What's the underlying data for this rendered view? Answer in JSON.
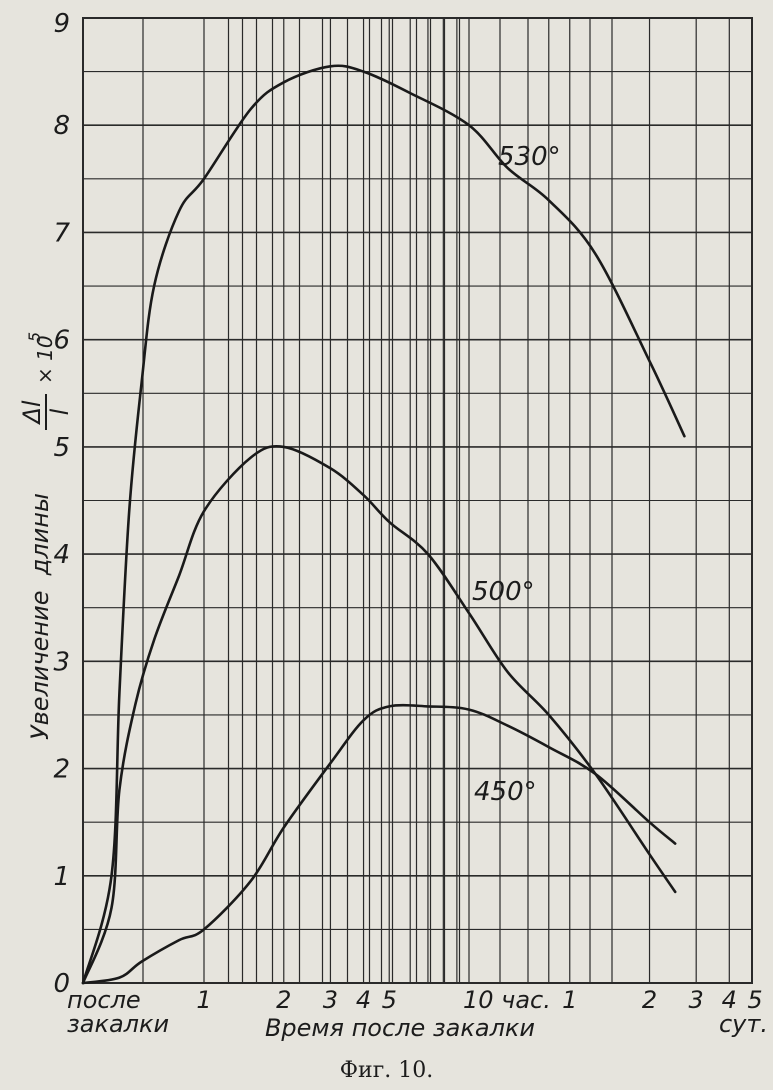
{
  "chart_data": {
    "type": "line",
    "caption": "Фиг. 10.",
    "ylabel": {
      "prefix": "Увеличение  длины",
      "frac_num": "Δl",
      "frac_den": "l",
      "factor": "× 10",
      "exp": "5"
    },
    "xlabel": "Время после закалки",
    "ylim": [
      0,
      9
    ],
    "y_ticks": [
      "0",
      "1",
      "2",
      "3",
      "4",
      "5",
      "6",
      "7",
      "8",
      "9"
    ],
    "x_scale": "log",
    "x_units": "hours",
    "x_ticks": [
      {
        "label_lines": [
          "после",
          "закалки"
        ],
        "anchor": "start"
      },
      {
        "label_lines": [
          "1"
        ]
      },
      {
        "label_lines": [
          "2"
        ]
      },
      {
        "label_lines": [
          "3"
        ]
      },
      {
        "label_lines": [
          "4"
        ]
      },
      {
        "label_lines": [
          "5"
        ]
      },
      {
        "label_lines": [
          "10 час."
        ]
      },
      {
        "label_lines": [
          "1"
        ]
      },
      {
        "label_lines": [
          "2"
        ]
      },
      {
        "label_lines": [
          "3"
        ]
      },
      {
        "label_lines": [
          "4"
        ]
      },
      {
        "label_lines": [
          "5"
        ]
      },
      {
        "label_lines": [
          "",
          "сут."
        ],
        "anchor": "end"
      }
    ],
    "grid": true,
    "series": [
      {
        "name": "530°",
        "x": [
          0,
          0.2,
          0.3,
          0.4,
          0.5,
          0.6,
          0.8,
          1,
          1.5,
          2,
          3,
          4,
          6,
          10,
          14,
          20,
          30,
          48,
          65
        ],
        "y": [
          0,
          1.0,
          2.7,
          4.4,
          5.6,
          6.5,
          7.2,
          7.5,
          8.15,
          8.4,
          8.55,
          8.5,
          8.3,
          8.0,
          7.6,
          7.3,
          6.8,
          5.8,
          5.1
        ]
      },
      {
        "name": "500°",
        "x": [
          0,
          0.2,
          0.3,
          0.45,
          0.6,
          0.8,
          1,
          1.5,
          2,
          3,
          4,
          5,
          7,
          10,
          14,
          20,
          30,
          48,
          60
        ],
        "y": [
          0,
          0.7,
          1.8,
          2.6,
          3.2,
          3.8,
          4.4,
          4.9,
          5.0,
          4.8,
          4.55,
          4.3,
          4.0,
          3.45,
          2.9,
          2.5,
          1.95,
          1.2,
          0.85
        ]
      },
      {
        "name": "450°",
        "x": [
          0,
          0.3,
          0.5,
          0.8,
          1,
          1.5,
          2,
          3,
          4,
          5,
          7,
          10,
          14,
          20,
          30,
          48,
          60
        ],
        "y": [
          0,
          0.05,
          0.2,
          0.4,
          0.5,
          0.95,
          1.45,
          2.05,
          2.45,
          2.58,
          2.58,
          2.55,
          2.4,
          2.2,
          1.95,
          1.5,
          1.3
        ]
      }
    ]
  }
}
